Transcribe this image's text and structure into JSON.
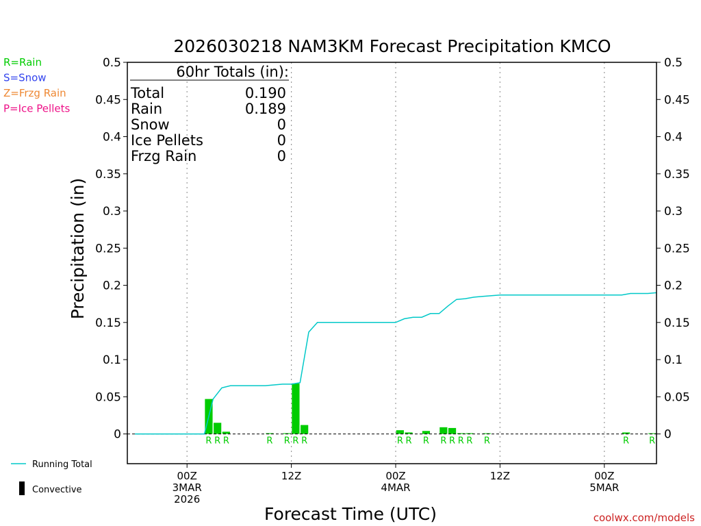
{
  "chart_data": {
    "type": "bar",
    "title": "2026030218 NAM3KM Forecast Precipitation KMCO",
    "xlabel": "Forecast Time (UTC)",
    "ylabel": "Precipitation (in)",
    "x_units": "hours since 2026-03-02 18Z",
    "xlim": [
      0,
      60
    ],
    "ylim": [
      -0.04,
      0.5
    ],
    "y_ticks": [
      0,
      0.05,
      0.1,
      0.15,
      0.2,
      0.25,
      0.3,
      0.35,
      0.4,
      0.45,
      0.5
    ],
    "y_tick_labels": [
      "0",
      "0.05",
      "0.1",
      "0.15",
      "0.2",
      "0.25",
      "0.3",
      "0.35",
      "0.4",
      "0.45",
      "0.5"
    ],
    "x_ticks": [
      {
        "hour": 6,
        "line1": "00Z",
        "line2": "3MAR",
        "line3": "2026"
      },
      {
        "hour": 18,
        "line1": "12Z",
        "line2": "",
        "line3": ""
      },
      {
        "hour": 30,
        "line1": "00Z",
        "line2": "4MAR",
        "line3": ""
      },
      {
        "hour": 42,
        "line1": "12Z",
        "line2": "",
        "line3": ""
      },
      {
        "hour": 54,
        "line1": "00Z",
        "line2": "5MAR",
        "line3": ""
      }
    ],
    "grid": "vertical dotted at x ticks",
    "series": [
      {
        "name": "Hourly precipitation",
        "kind": "bar",
        "color": "#00cc00",
        "values": [
          {
            "hour": 9,
            "value": 0.047,
            "ptype": "R"
          },
          {
            "hour": 10,
            "value": 0.015,
            "ptype": "R"
          },
          {
            "hour": 11,
            "value": 0.003,
            "ptype": "R"
          },
          {
            "hour": 16,
            "value": 0.001,
            "ptype": "R"
          },
          {
            "hour": 18,
            "value": 0.001,
            "ptype": "R"
          },
          {
            "hour": 19,
            "value": 0.068,
            "ptype": "R"
          },
          {
            "hour": 20,
            "value": 0.012,
            "ptype": "R"
          },
          {
            "hour": 31,
            "value": 0.005,
            "ptype": "R"
          },
          {
            "hour": 32,
            "value": 0.002,
            "ptype": "R"
          },
          {
            "hour": 34,
            "value": 0.004,
            "ptype": "R"
          },
          {
            "hour": 36,
            "value": 0.009,
            "ptype": "R"
          },
          {
            "hour": 37,
            "value": 0.008,
            "ptype": "R"
          },
          {
            "hour": 38,
            "value": 0.001,
            "ptype": "R"
          },
          {
            "hour": 39,
            "value": 0.001,
            "ptype": "R"
          },
          {
            "hour": 41,
            "value": 0.0005,
            "ptype": "R"
          },
          {
            "hour": 57,
            "value": 0.002,
            "ptype": "R"
          },
          {
            "hour": 60,
            "value": 0.0005,
            "ptype": "R"
          }
        ]
      },
      {
        "name": "Running Total",
        "kind": "line",
        "color": "#00c8c8",
        "points": [
          [
            0,
            0
          ],
          [
            8,
            0
          ],
          [
            9,
            0.047
          ],
          [
            10,
            0.062
          ],
          [
            11,
            0.065
          ],
          [
            13,
            0.065
          ],
          [
            15,
            0.065
          ],
          [
            16,
            0.066
          ],
          [
            17,
            0.067
          ],
          [
            18,
            0.067
          ],
          [
            19,
            0.069
          ],
          [
            20,
            0.137
          ],
          [
            21,
            0.15
          ],
          [
            24,
            0.15
          ],
          [
            28,
            0.15
          ],
          [
            30,
            0.15
          ],
          [
            31,
            0.155
          ],
          [
            32,
            0.157
          ],
          [
            33,
            0.157
          ],
          [
            34,
            0.162
          ],
          [
            35,
            0.162
          ],
          [
            36,
            0.172
          ],
          [
            37,
            0.181
          ],
          [
            38,
            0.182
          ],
          [
            39,
            0.184
          ],
          [
            40,
            0.185
          ],
          [
            41,
            0.186
          ],
          [
            42,
            0.187
          ],
          [
            48,
            0.187
          ],
          [
            56,
            0.187
          ],
          [
            57,
            0.189
          ],
          [
            59,
            0.189
          ],
          [
            60,
            0.19
          ]
        ]
      }
    ],
    "summary": {
      "heading": "60hr Totals (in):",
      "rows": [
        {
          "label": "Total",
          "value": "0.190"
        },
        {
          "label": "Rain",
          "value": "0.189"
        },
        {
          "label": "Snow",
          "value": "0"
        },
        {
          "label": "Ice Pellets",
          "value": "0"
        },
        {
          "label": "Frzg Rain",
          "value": "0"
        }
      ]
    },
    "ptype_legend": [
      {
        "text": "R=Rain",
        "color": "#00cc00"
      },
      {
        "text": "S=Snow",
        "color": "#3344ee"
      },
      {
        "text": "Z=Frzg Rain",
        "color": "#ee8833"
      },
      {
        "text": "P=Ice Pellets",
        "color": "#ee1188"
      }
    ],
    "legend": [
      {
        "text": "Running Total",
        "color": "#00c8c8",
        "symbol": "line"
      },
      {
        "text": "Convective",
        "color": "#000000",
        "symbol": "bar"
      }
    ],
    "credit": "coolwx.com/models",
    "credit_color": "#cc2222"
  }
}
